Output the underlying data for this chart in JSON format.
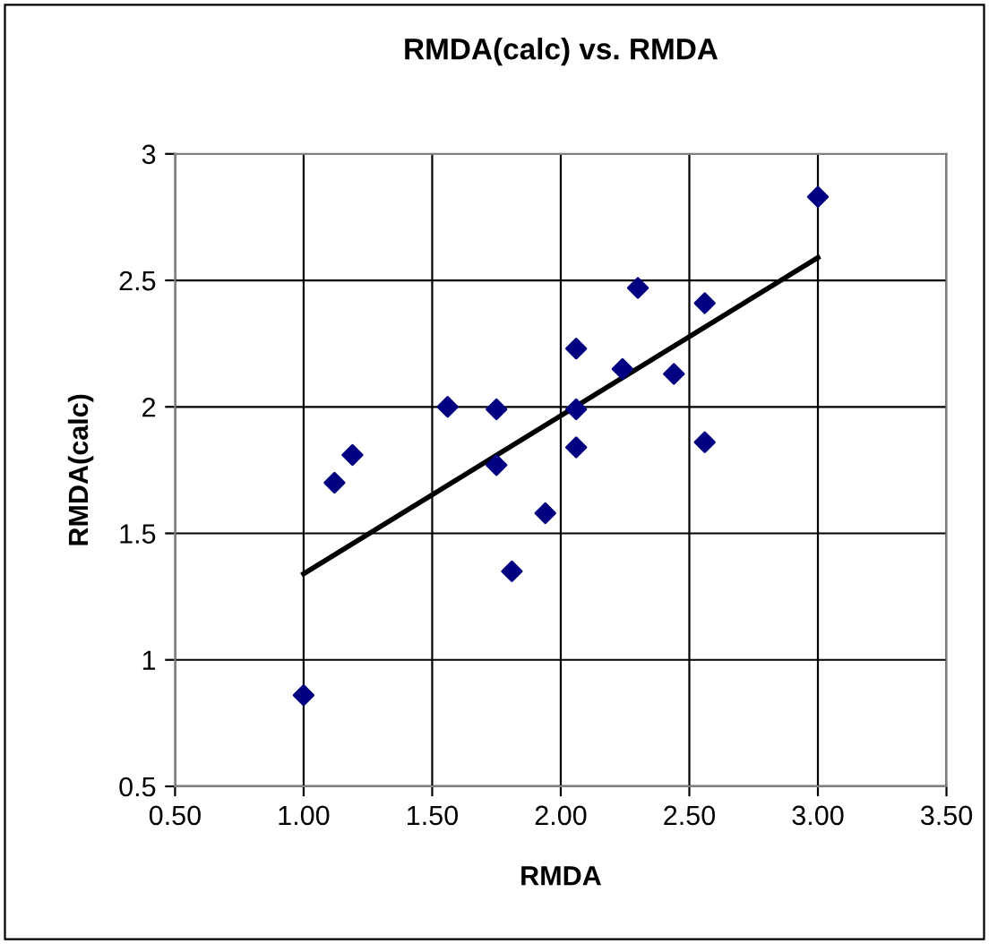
{
  "chart_data": {
    "type": "scatter",
    "title": "RMDA(calc) vs. RMDA",
    "xlabel": "RMDA",
    "ylabel": "RMDA(calc)",
    "xlim": [
      0.5,
      3.5
    ],
    "ylim": [
      0.5,
      3
    ],
    "xticks": [
      {
        "value": 0.5,
        "label": "0.50"
      },
      {
        "value": 1.0,
        "label": "1.00"
      },
      {
        "value": 1.5,
        "label": "1.50"
      },
      {
        "value": 2.0,
        "label": "2.00"
      },
      {
        "value": 2.5,
        "label": "2.50"
      },
      {
        "value": 3.0,
        "label": "3.00"
      },
      {
        "value": 3.5,
        "label": "3.50"
      }
    ],
    "yticks": [
      0.5,
      1,
      1.5,
      2,
      2.5,
      3
    ],
    "grid": true,
    "legend": false,
    "series": [
      {
        "color": "#000080",
        "marker": "diamond",
        "x": [
          1.0,
          1.12,
          1.19,
          1.56,
          1.75,
          1.75,
          1.81,
          1.94,
          2.06,
          2.06,
          2.06,
          2.24,
          2.3,
          2.44,
          2.56,
          2.56,
          3.0
        ],
        "values": [
          0.86,
          1.7,
          1.81,
          2.0,
          1.99,
          1.77,
          1.35,
          1.58,
          2.23,
          1.99,
          1.84,
          2.15,
          2.47,
          2.13,
          2.41,
          1.86,
          2.83
        ]
      },
      {
        "type": "line",
        "color": "#000000",
        "marker": "none",
        "line_style": "solid",
        "x": [
          1.0,
          3.0
        ],
        "values": [
          1.34,
          2.59
        ]
      }
    ]
  }
}
